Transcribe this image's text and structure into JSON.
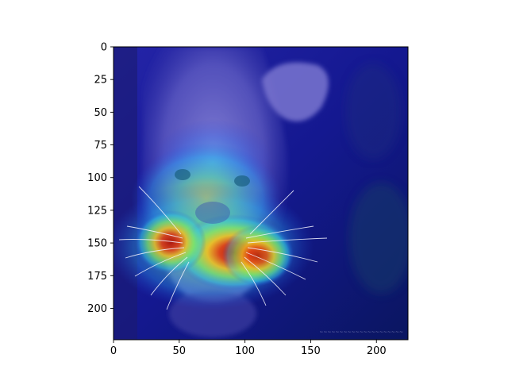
{
  "chart_data": {
    "type": "heatmap",
    "title": "",
    "xlabel": "",
    "ylabel": "",
    "xlim": [
      0,
      224
    ],
    "ylim": [
      224,
      0
    ],
    "x_ticks": [
      0,
      50,
      100,
      150,
      200
    ],
    "x_tick_labels": [
      "0",
      "50",
      "100",
      "150",
      "200"
    ],
    "y_ticks": [
      0,
      25,
      50,
      75,
      100,
      125,
      150,
      175,
      200
    ],
    "y_tick_labels": [
      "0",
      "25",
      "50",
      "75",
      "100",
      "125",
      "150",
      "175",
      "200"
    ],
    "grid": false,
    "colormap": "jet",
    "background_image": "cougar photo with grad-cam heatmap overlay",
    "hotspots": [
      {
        "x": 85,
        "y": 155,
        "intensity": 1.0
      },
      {
        "x": 42,
        "y": 150,
        "intensity": 0.9
      },
      {
        "x": 108,
        "y": 158,
        "intensity": 0.75
      },
      {
        "x": 72,
        "y": 125,
        "intensity": 0.55
      },
      {
        "x": 70,
        "y": 95,
        "intensity": 0.3
      }
    ]
  },
  "colors": {
    "frame": "#000000",
    "background": "#ffffff",
    "low": "#10108a",
    "mid_low": "#2a55e8",
    "mid": "#38d8d0",
    "mid_high": "#e8e830",
    "high": "#d02010"
  }
}
